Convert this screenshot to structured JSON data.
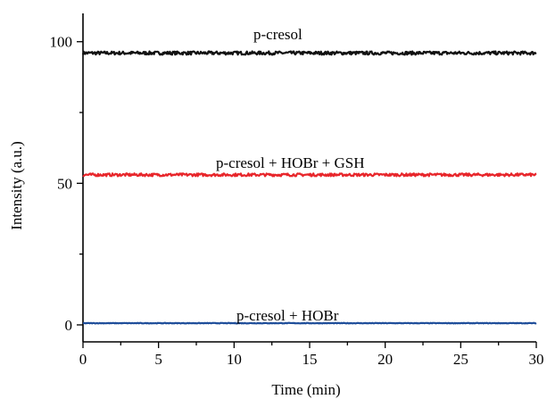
{
  "chart_data": {
    "type": "line",
    "xlabel": "Time (min)",
    "ylabel": "Intensity (a.u.)",
    "xlim": [
      0,
      30
    ],
    "ylim": [
      -6,
      110
    ],
    "x_ticks": [
      0,
      5,
      10,
      15,
      20,
      25,
      30
    ],
    "y_ticks": [
      0,
      50,
      100
    ],
    "grid": false,
    "series": [
      {
        "name": "p-cresol",
        "color": "#111111",
        "x": [
          0,
          30
        ],
        "y": [
          96,
          96
        ],
        "noise": 0.6
      },
      {
        "name": "p-cresol + HOBr + GSH",
        "color": "#e8262b",
        "x": [
          0,
          30
        ],
        "y": [
          53,
          53
        ],
        "noise": 0.5
      },
      {
        "name": "p-cresol + HOBr",
        "color": "#1f4e9a",
        "x": [
          0,
          30
        ],
        "y": [
          0.6,
          0.6
        ],
        "noise": 0.1
      }
    ]
  }
}
